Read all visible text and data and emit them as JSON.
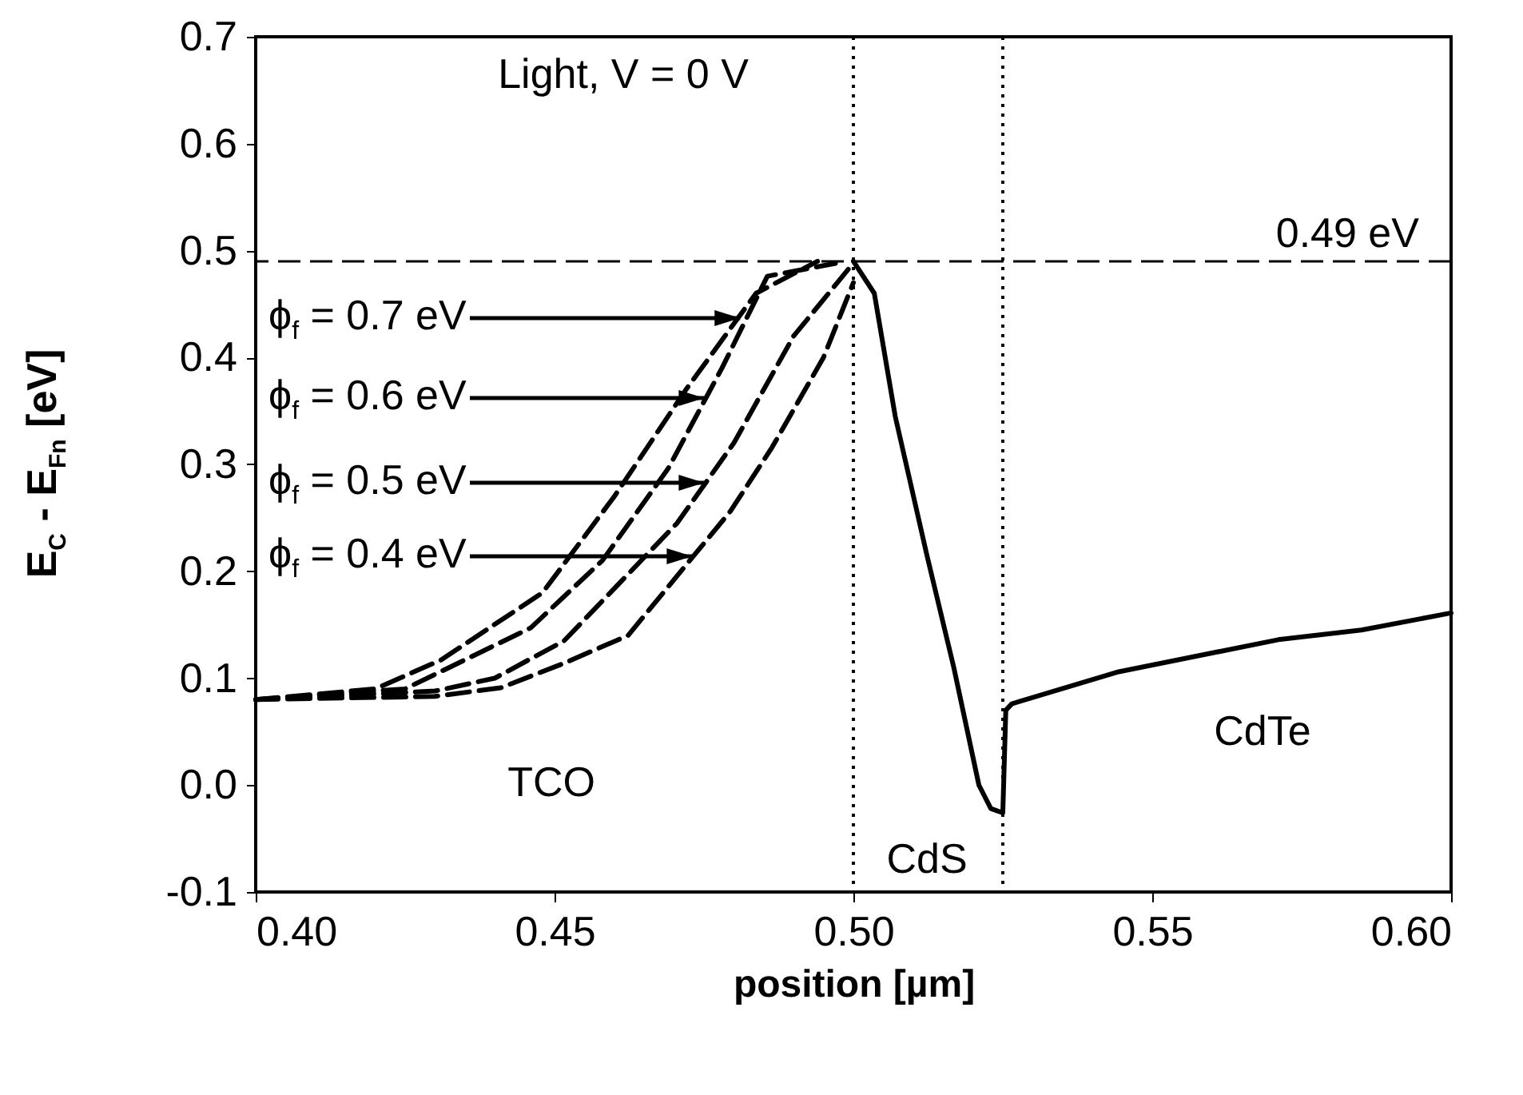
{
  "chart_data": {
    "type": "line",
    "xlabel": "position [µm]",
    "ylabel": "E$_{C}$ - E$_{Fn}$ [eV]",
    "xlim": [
      0.4,
      0.6
    ],
    "xticks": [
      {
        "value": 0.4,
        "label": "0.40"
      },
      0.45,
      {
        "value": 0.5,
        "label": "0.50"
      },
      0.55,
      {
        "value": 0.6,
        "label": "0.60"
      }
    ],
    "ylim": [
      -0.1,
      0.7
    ],
    "yticks": [
      -0.1,
      {
        "value": 0,
        "label": "0.0"
      },
      0.1,
      0.2,
      0.3,
      0.4,
      0.5,
      0.6,
      0.7
    ],
    "grid": false,
    "series": [
      {
        "color": "#000000",
        "line_style": "dashed",
        "x": [
          0.4,
          0.42,
          0.431,
          0.448,
          0.46,
          0.472,
          0.4837,
          0.494
        ],
        "values": [
          0.08,
          0.09,
          0.117,
          0.18,
          0.27,
          0.37,
          0.46,
          0.49
        ]
      },
      {
        "color": "#000000",
        "line_style": "dashed",
        "x": [
          0.4,
          0.425,
          0.446,
          0.458,
          0.469,
          0.478,
          0.4856,
          0.497
        ],
        "values": [
          0.08,
          0.09,
          0.147,
          0.21,
          0.296,
          0.39,
          0.476,
          0.488
        ]
      },
      {
        "color": "#000000",
        "line_style": "dashed",
        "x": [
          0.4,
          0.43,
          0.44,
          0.4516,
          0.4705,
          0.48,
          0.49,
          0.4995
        ],
        "values": [
          0.08,
          0.088,
          0.1,
          0.135,
          0.245,
          0.32,
          0.42,
          0.485
        ]
      },
      {
        "color": "#000000",
        "line_style": "dashed",
        "x": [
          0.4,
          0.43,
          0.441,
          0.4516,
          0.4623,
          0.4794,
          0.4864,
          0.495,
          0.5
        ],
        "values": [
          0.08,
          0.083,
          0.091,
          0.114,
          0.14,
          0.256,
          0.316,
          0.4,
          0.47
        ]
      },
      {
        "color": "#000000",
        "line_style": "solid",
        "x": [
          0.5,
          0.5035,
          0.507,
          0.5123,
          0.5168,
          0.521,
          0.523,
          0.525,
          0.5255,
          0.5265,
          0.5444,
          0.5711,
          0.585,
          0.6
        ],
        "values": [
          0.49,
          0.46,
          0.345,
          0.215,
          0.11,
          0.0,
          -0.022,
          -0.026,
          0.07,
          0.076,
          0.106,
          0.136,
          0.145,
          0.161
        ]
      }
    ],
    "ref_lines": [
      {
        "axis": "y",
        "value": 0.49,
        "label": "0.49 eV",
        "color": "#000000",
        "line_style": "dashed"
      },
      {
        "axis": "x",
        "value": 0.5,
        "color": "#000000",
        "line_style": "dotted"
      },
      {
        "axis": "x",
        "value": 0.525,
        "color": "#000000",
        "line_style": "dotted"
      }
    ],
    "annotations": [
      "Light, V = 0 V",
      "TCO",
      "CdS",
      "CdTe",
      {
        "text": "ϕ$_{f}$ = 0.7 eV",
        "x": 0.481,
        "y": 0.437
      },
      {
        "text": "ϕ$_{f}$ = 0.6 eV",
        "x": 0.475,
        "y": 0.362
      },
      {
        "text": "ϕ$_{f}$ = 0.5 eV",
        "x": 0.475,
        "y": 0.283
      },
      {
        "text": "ϕ$_{f}$ = 0.4 eV",
        "x": 0.473,
        "y": 0.214
      }
    ]
  }
}
